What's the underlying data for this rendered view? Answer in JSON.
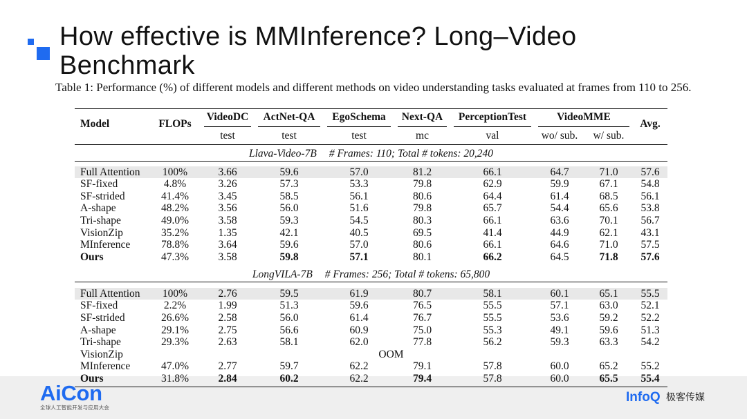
{
  "slide": {
    "title": "How effective is MMInference? Long–Video Benchmark",
    "caption": "Table 1: Performance (%) of different models and different methods on video understanding tasks evaluated at frames from 110 to 256.",
    "title_mark_icon": "stacked-squares-icon"
  },
  "table": {
    "header": {
      "model": "Model",
      "flops": "FLOPs",
      "avg": "Avg.",
      "groups": [
        {
          "name": "VideoDC",
          "subs": [
            "test"
          ]
        },
        {
          "name": "ActNet-QA",
          "subs": [
            "test"
          ]
        },
        {
          "name": "EgoSchema",
          "subs": [
            "test"
          ]
        },
        {
          "name": "Next-QA",
          "subs": [
            "mc"
          ]
        },
        {
          "name": "PerceptionTest",
          "subs": [
            "val"
          ]
        },
        {
          "name": "VideoMME",
          "subs": [
            "wo/ sub.",
            "w/ sub."
          ]
        }
      ]
    },
    "sections": [
      {
        "model_name": "Llava-Video-7B",
        "info": "# Frames: 110; Total # tokens: 20,240",
        "rows": [
          {
            "model": "Full Attention",
            "flops": "100%",
            "values": [
              "3.66",
              "59.6",
              "57.0",
              "81.2",
              "66.1",
              "64.7",
              "71.0",
              "57.6"
            ],
            "shaded": true
          },
          {
            "model": "SF-fixed",
            "flops": "4.8%",
            "values": [
              "3.26",
              "57.3",
              "53.3",
              "79.8",
              "62.9",
              "59.9",
              "67.1",
              "54.8"
            ]
          },
          {
            "model": "SF-strided",
            "flops": "41.4%",
            "values": [
              "3.45",
              "58.5",
              "56.1",
              "80.6",
              "64.4",
              "61.4",
              "68.5",
              "56.1"
            ]
          },
          {
            "model": "A-shape",
            "flops": "48.2%",
            "values": [
              "3.56",
              "56.0",
              "51.6",
              "79.8",
              "65.7",
              "54.4",
              "65.6",
              "53.8"
            ]
          },
          {
            "model": "Tri-shape",
            "flops": "49.0%",
            "values": [
              "3.58",
              "59.3",
              "54.5",
              "80.3",
              "66.1",
              "63.6",
              "70.1",
              "56.7"
            ]
          },
          {
            "model": "VisionZip",
            "flops": "35.2%",
            "values": [
              "1.35",
              "42.1",
              "40.5",
              "69.5",
              "41.4",
              "44.9",
              "62.1",
              "43.1"
            ]
          },
          {
            "model": "MInference",
            "flops": "78.8%",
            "values": [
              "3.64",
              "59.6",
              "57.0",
              "80.6",
              "66.1",
              "64.6",
              "71.0",
              "57.5"
            ]
          },
          {
            "model": "Ours",
            "flops": "47.3%",
            "values": [
              "3.58",
              "59.8",
              "57.1",
              "80.1",
              "66.2",
              "64.5",
              "71.8",
              "57.6"
            ],
            "model_bold": true,
            "bold_values": [
              1,
              2,
              4,
              6,
              7
            ]
          }
        ]
      },
      {
        "model_name": "LongVILA-7B",
        "info": "# Frames: 256; Total # tokens: 65,800",
        "rows": [
          {
            "model": "Full Attention",
            "flops": "100%",
            "values": [
              "2.76",
              "59.5",
              "61.9",
              "80.7",
              "58.1",
              "60.1",
              "65.1",
              "55.5"
            ],
            "shaded": true
          },
          {
            "model": "SF-fixed",
            "flops": "2.2%",
            "values": [
              "1.99",
              "51.3",
              "59.6",
              "76.5",
              "55.5",
              "57.1",
              "63.0",
              "52.1"
            ]
          },
          {
            "model": "SF-strided",
            "flops": "26.6%",
            "values": [
              "2.58",
              "56.0",
              "61.4",
              "76.7",
              "55.5",
              "53.6",
              "59.2",
              "52.2"
            ]
          },
          {
            "model": "A-shape",
            "flops": "29.1%",
            "values": [
              "2.75",
              "56.6",
              "60.9",
              "75.0",
              "55.3",
              "49.1",
              "59.6",
              "51.3"
            ]
          },
          {
            "model": "Tri-shape",
            "flops": "29.3%",
            "values": [
              "2.63",
              "58.1",
              "62.0",
              "77.8",
              "56.2",
              "59.3",
              "63.3",
              "54.2"
            ]
          },
          {
            "model": "VisionZip",
            "span": "OOM"
          },
          {
            "model": "MInference",
            "flops": "47.0%",
            "values": [
              "2.77",
              "59.7",
              "62.2",
              "79.1",
              "57.8",
              "60.0",
              "65.2",
              "55.2"
            ]
          },
          {
            "model": "Ours",
            "flops": "31.8%",
            "values": [
              "2.84",
              "60.2",
              "62.2",
              "79.4",
              "57.8",
              "60.0",
              "65.5",
              "55.4"
            ],
            "model_bold": true,
            "bold_values": [
              0,
              1,
              3,
              6,
              7
            ]
          }
        ]
      }
    ]
  },
  "footer": {
    "event_logo": "AiCon",
    "event_name": "全球人工智能开发与应用大会",
    "brand_logo": "InfoQ",
    "brand_name": "极客传媒"
  },
  "colors": {
    "accent": "#1f6bf0",
    "shaded_row": "#e8e8e8",
    "footer_band": "#efefef",
    "ink": "#111111"
  }
}
